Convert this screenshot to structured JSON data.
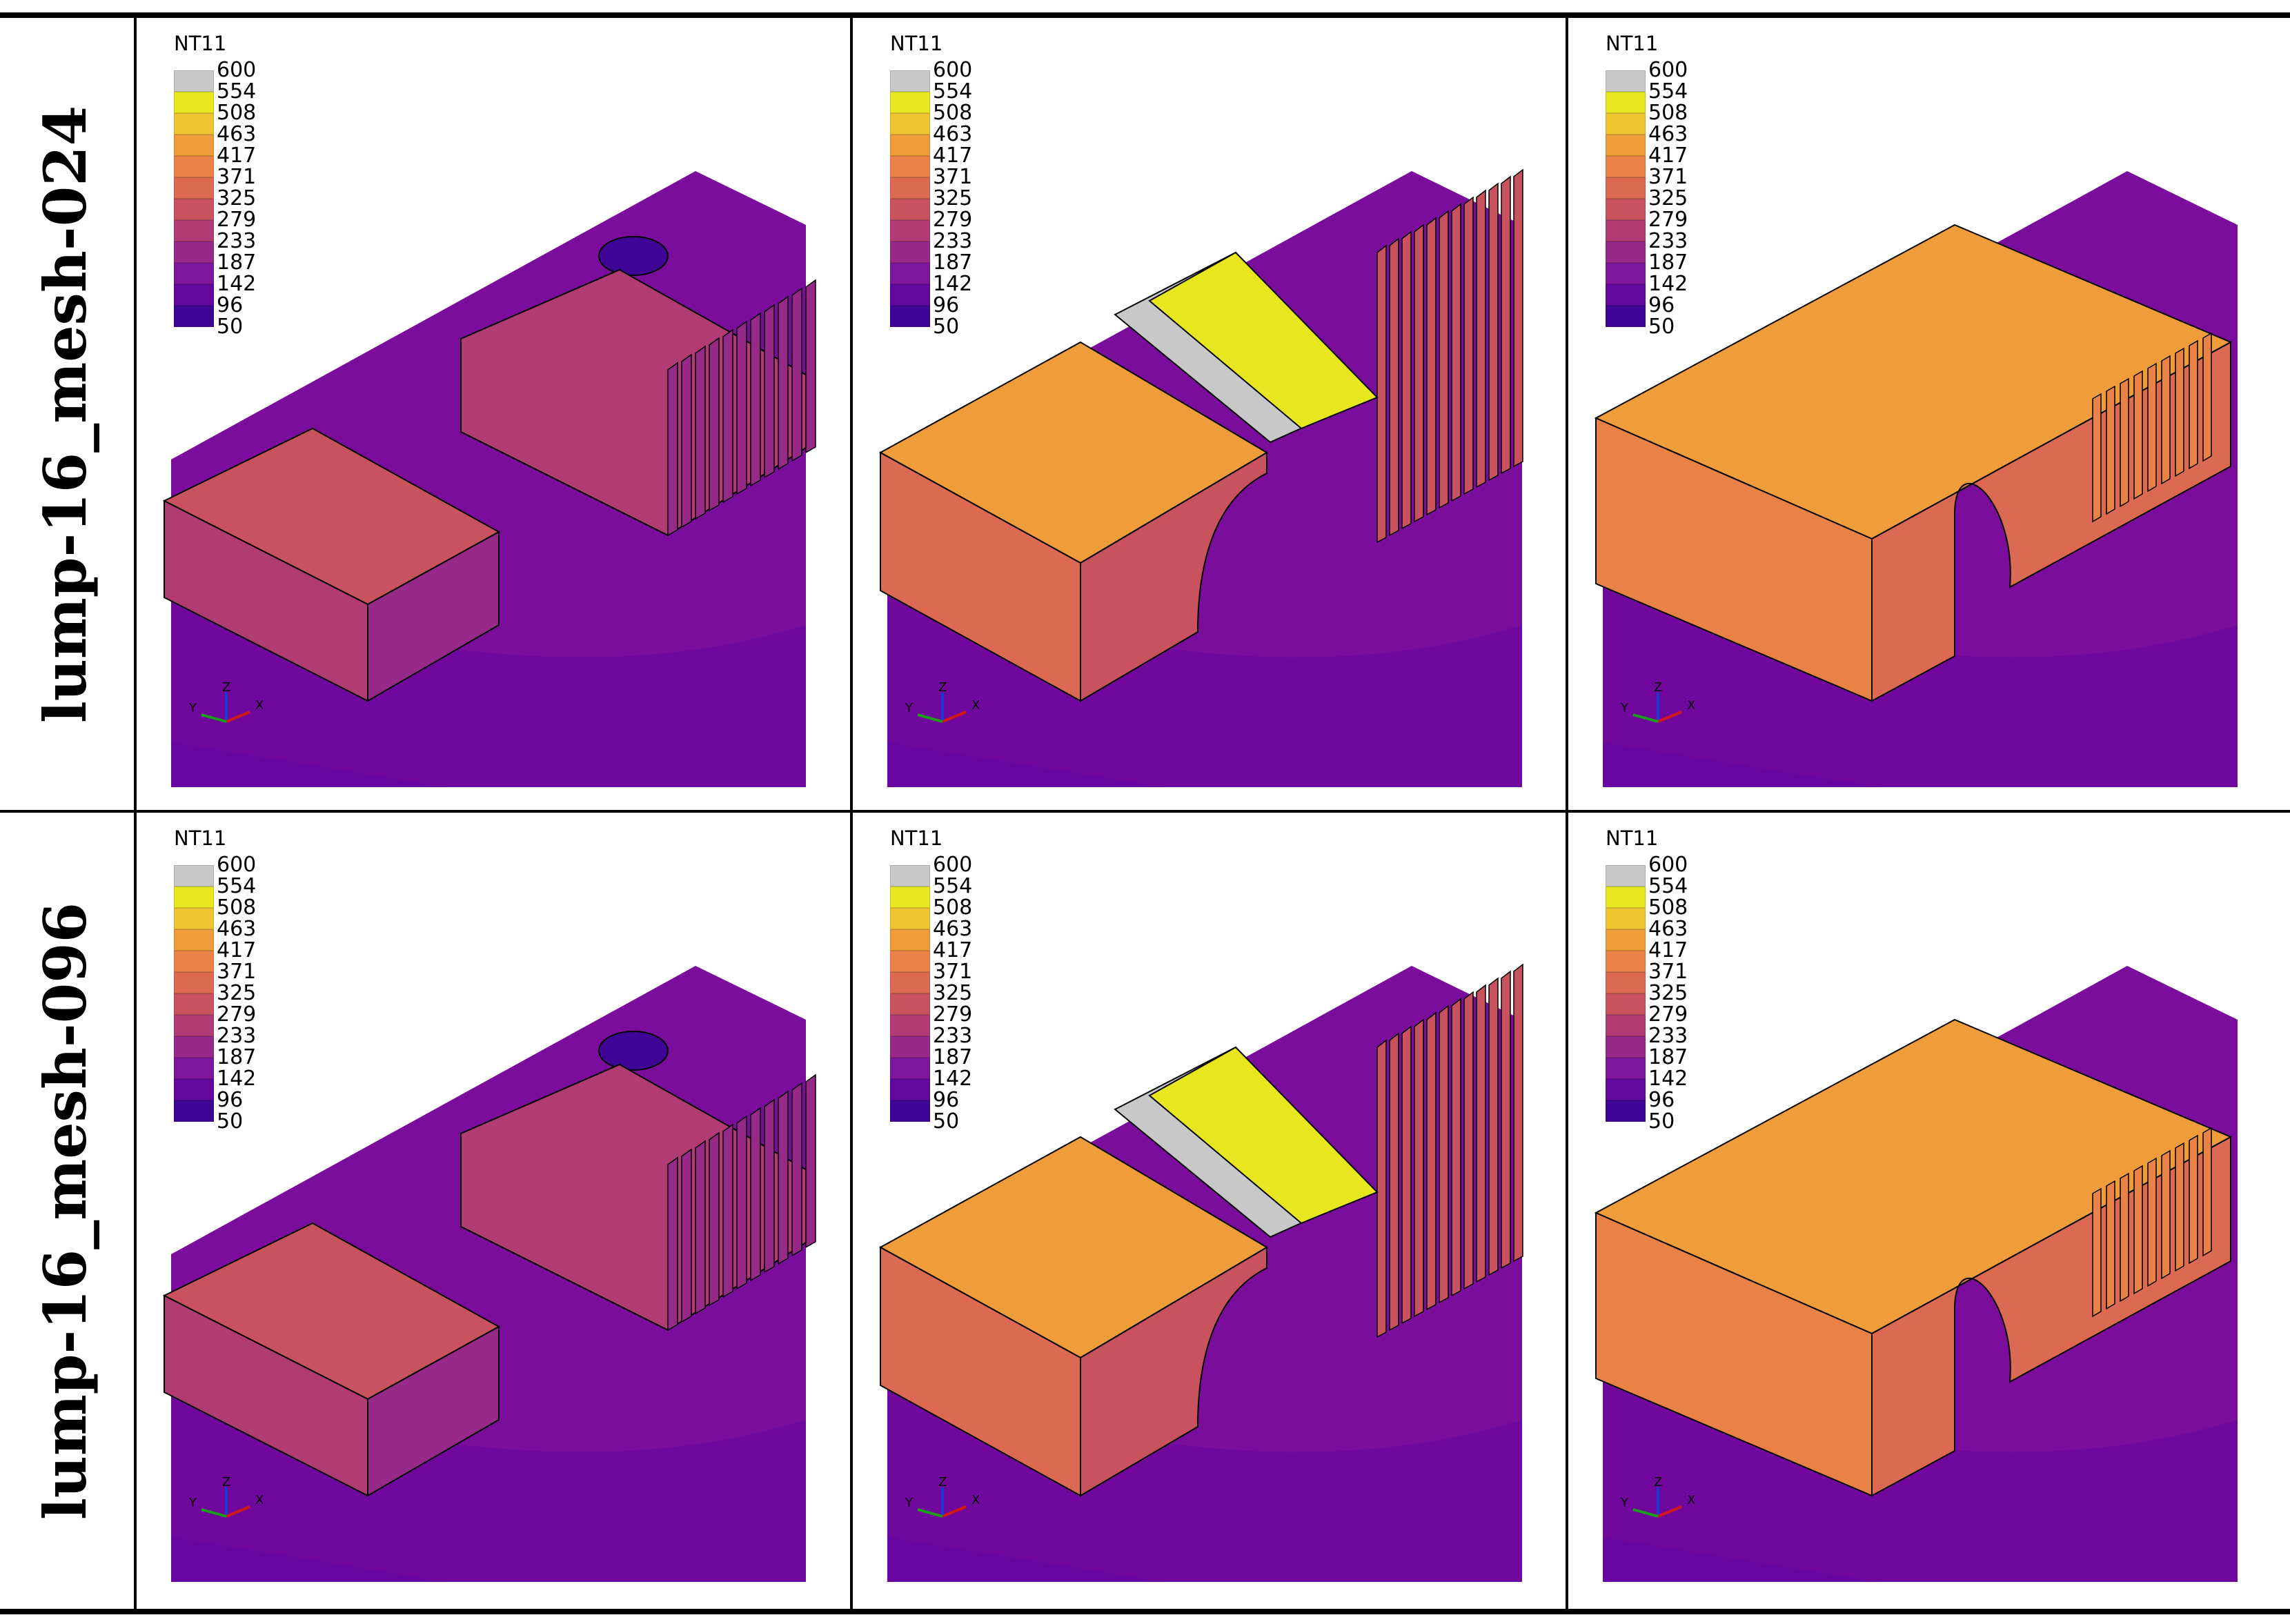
{
  "rows": [
    {
      "label": "lump-16_mesh-024"
    },
    {
      "label": "lump-16_mesh-096"
    }
  ],
  "legend": {
    "title": "NT11",
    "levels": [
      {
        "value": "600",
        "color": "#c8c8c8"
      },
      {
        "value": "554",
        "color": "#e8e61e"
      },
      {
        "value": "508",
        "color": "#f0c531"
      },
      {
        "value": "463",
        "color": "#ef9d3a"
      },
      {
        "value": "417",
        "color": "#e98247"
      },
      {
        "value": "371",
        "color": "#dc6a52"
      },
      {
        "value": "325",
        "color": "#c8535f"
      },
      {
        "value": "279",
        "color": "#b03c73"
      },
      {
        "value": "233",
        "color": "#972989"
      },
      {
        "value": "187",
        "color": "#7d169a"
      },
      {
        "value": "142",
        "color": "#64079f"
      },
      {
        "value": "96",
        "color": "#3e0596"
      },
      {
        "value": "50",
        "color": "#0a007e"
      }
    ]
  },
  "axes_triad": {
    "x": "X",
    "y": "Y",
    "z": "Z"
  },
  "colors": {
    "plate": "#7a0d9c",
    "plate_dark": "#6a05a0",
    "rule": "#000000"
  }
}
